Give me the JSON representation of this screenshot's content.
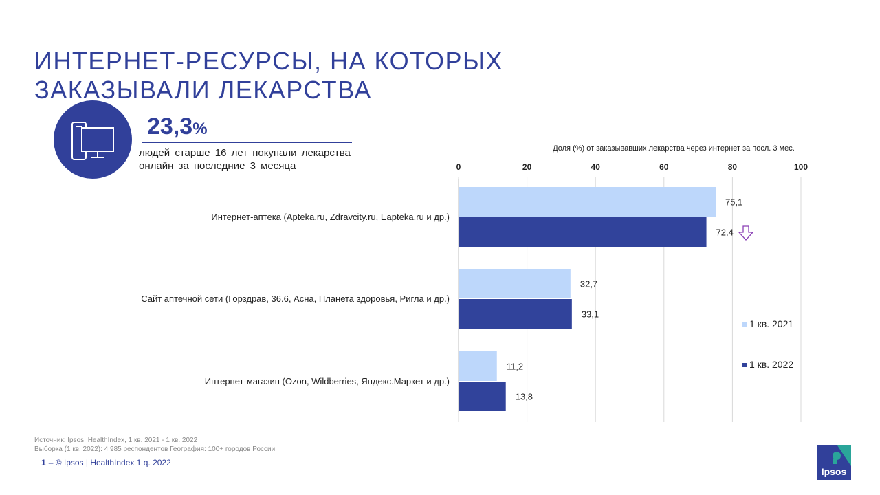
{
  "title": {
    "line1": "ИНТЕРНЕТ-РЕСУРСЫ, НА КОТОРЫХ",
    "line2": "ЗАКАЗЫВАЛИ ЛЕКАРСТВА"
  },
  "stat": {
    "value": "23,3",
    "unit": "%",
    "description": "людей старше 16 лет покупали лекарства онлайн за последние 3 месяца",
    "icon": "devices-icon"
  },
  "chart_data": {
    "type": "bar",
    "orientation": "horizontal",
    "title": "Доля (%) от заказывавших лекарства через интернет за посл. 3 мес.",
    "categories": [
      "Интернет-аптека (Apteka.ru, Zdravcity.ru, Eapteka.ru и др.)",
      "Сайт аптечной сети (Горздрав, 36.6, Асна, Планета здоровья, Ригла и др.)",
      "Интернет-магазин (Ozon, Wildberries, Яндекс.Маркет и др.)"
    ],
    "series": [
      {
        "name": "1 кв. 2021",
        "values": [
          75.1,
          32.7,
          11.2
        ],
        "labels": [
          "75,1",
          "32,7",
          "11,2"
        ],
        "color": "#bdd7fb"
      },
      {
        "name": "1 кв. 2022",
        "values": [
          72.4,
          33.1,
          13.8
        ],
        "labels": [
          "72,4",
          "33,1",
          "13,8"
        ],
        "color": "#31439b"
      }
    ],
    "xlim": [
      0,
      100
    ],
    "ticks": [
      0,
      20,
      40,
      60,
      80,
      100
    ],
    "tick_labels": [
      "0",
      "20",
      "40",
      "60",
      "80",
      "100"
    ],
    "gridlines": true,
    "axis_position": "top",
    "legend_position": "right",
    "annotation": {
      "type": "down-arrow",
      "category_index": 0,
      "color": "#8a3fb5"
    }
  },
  "legend": {
    "item1": "1 кв. 2021",
    "item2": "1 кв. 2022"
  },
  "footer": {
    "source": "Источник: Ipsos, HealthIndex, 1 кв. 2021 - 1 кв. 2022",
    "sample": "Выборка (1 кв. 2022): 4 985 респондентов География: 100+ городов России",
    "page": "1",
    "copyright": "–  © Ipsos | HealthIndex 1 q. 2022"
  },
  "logo": {
    "text": "Ipsos",
    "colors": [
      "#31409a",
      "#2aa59a"
    ]
  }
}
